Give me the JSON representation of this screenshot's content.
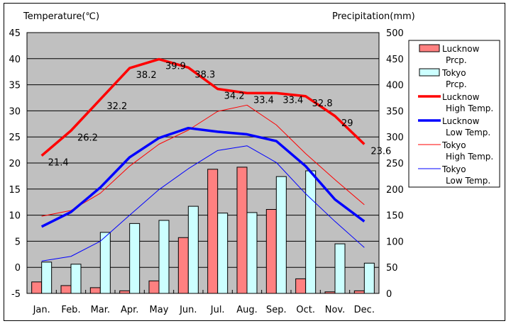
{
  "chart_data": {
    "type": "bar",
    "title": "",
    "left_axis_label": "Temperature(℃)",
    "right_axis_label": "Precipitation(mm)",
    "categories": [
      "Jan.",
      "Feb.",
      "Mar.",
      "Apr.",
      "May",
      "Jun.",
      "Jul.",
      "Aug.",
      "Sep.",
      "Oct.",
      "Nov.",
      "Dec."
    ],
    "left_axis": {
      "min": -5,
      "max": 45,
      "step": 5,
      "ticks": [
        "45",
        "40",
        "35",
        "30",
        "25",
        "20",
        "15",
        "10",
        "5",
        "0",
        "-5"
      ]
    },
    "right_axis": {
      "min": 0,
      "max": 500,
      "step": 50,
      "ticks": [
        "500",
        "450",
        "400",
        "350",
        "300",
        "250",
        "200",
        "150",
        "100",
        "50",
        "0"
      ]
    },
    "grid": true,
    "legend_position": "right",
    "bar_series": [
      {
        "name": "Lucknow Prcp.",
        "legend": [
          "Lucknow",
          "Prcp."
        ],
        "color": "#FF8080",
        "axis": "right",
        "values": [
          22,
          15,
          11,
          5,
          24,
          107,
          238,
          242,
          161,
          28,
          3,
          5
        ]
      },
      {
        "name": "Tokyo Prcp.",
        "legend": [
          "Tokyo",
          "Prcp."
        ],
        "color": "#CCFFFF",
        "axis": "right",
        "values": [
          60,
          56,
          117,
          134,
          140,
          167,
          154,
          155,
          224,
          235,
          95,
          58
        ]
      }
    ],
    "line_series": [
      {
        "name": "Lucknow High Temp.",
        "legend": [
          "Lucknow",
          "High Temp."
        ],
        "color": "#FF0000",
        "weight": "thick",
        "axis": "left",
        "values": [
          21.4,
          26.2,
          32.2,
          38.2,
          39.9,
          38.3,
          34.2,
          33.4,
          33.4,
          32.8,
          29,
          23.6
        ],
        "data_labels": [
          "21.4",
          "26.2",
          "32.2",
          "38.2",
          "39.9",
          "38.3",
          "34.2",
          "33.4",
          "33.4",
          "32.8",
          "29",
          "23.6"
        ]
      },
      {
        "name": "Lucknow Low Temp.",
        "legend": [
          "Lucknow",
          "Low Temp."
        ],
        "color": "#0000FF",
        "weight": "thick",
        "axis": "left",
        "values": [
          7.8,
          10.6,
          15.3,
          21.1,
          24.8,
          26.7,
          26.0,
          25.5,
          24.2,
          19.4,
          13.0,
          8.8
        ]
      },
      {
        "name": "Tokyo High Temp.",
        "legend": [
          "Tokyo",
          "High Temp."
        ],
        "color": "#FF0000",
        "weight": "thin",
        "axis": "left",
        "values": [
          9.8,
          10.9,
          14.2,
          19.4,
          23.6,
          26.3,
          29.9,
          31.1,
          27.3,
          21.8,
          16.8,
          12.0
        ]
      },
      {
        "name": "Tokyo Low Temp.",
        "legend": [
          "Tokyo",
          "Low Temp."
        ],
        "color": "#0000FF",
        "weight": "thin",
        "axis": "left",
        "values": [
          1.2,
          2.1,
          5.0,
          10.0,
          14.9,
          18.9,
          22.4,
          23.3,
          20.1,
          14.1,
          8.8,
          3.8
        ]
      }
    ],
    "plot_background": "#C0C0C0"
  }
}
